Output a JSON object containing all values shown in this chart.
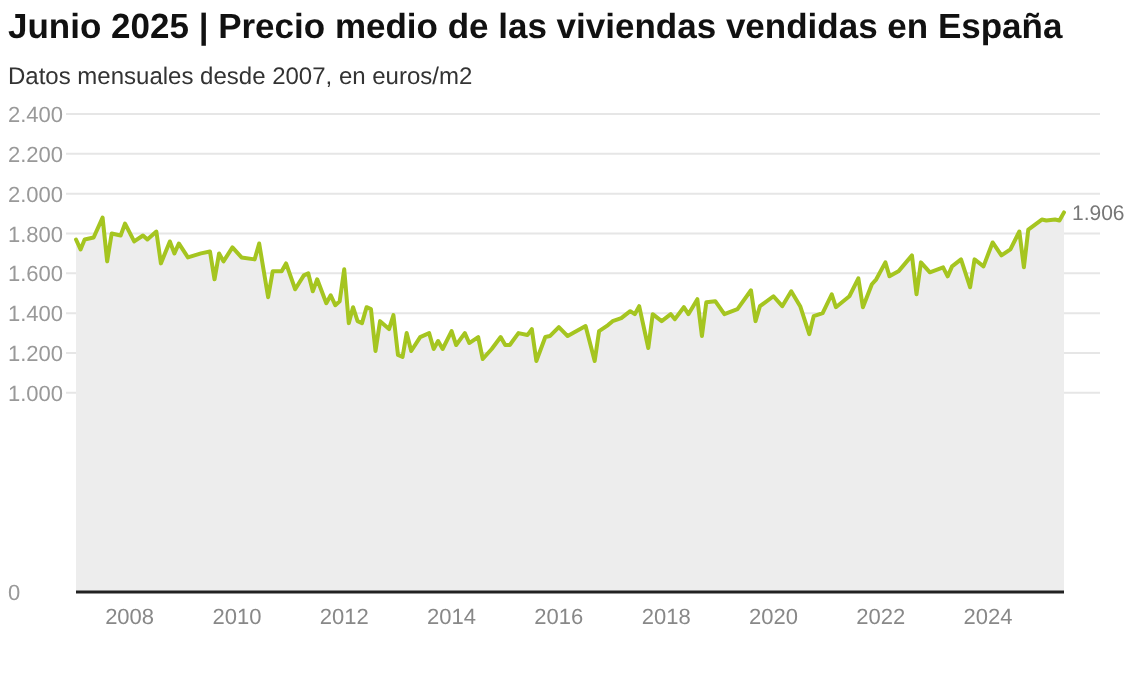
{
  "chart_data": {
    "type": "area",
    "title": "Junio 2025 | Precio medio de las viviendas vendidas en España",
    "subtitle": "Datos mensuales desde 2007, en euros/m2",
    "x": [
      "2007-01",
      "2007-02",
      "2007-03",
      "2007-05",
      "2007-07",
      "2007-08",
      "2007-09",
      "2007-11",
      "2007-12",
      "2008-02",
      "2008-04",
      "2008-05",
      "2008-07",
      "2008-08",
      "2008-10",
      "2008-11",
      "2008-12",
      "2009-02",
      "2009-05",
      "2009-07",
      "2009-08",
      "2009-09",
      "2009-10",
      "2009-12",
      "2010-02",
      "2010-05",
      "2010-06",
      "2010-08",
      "2010-09",
      "2010-11",
      "2010-12",
      "2011-02",
      "2011-04",
      "2011-05",
      "2011-06",
      "2011-07",
      "2011-09",
      "2011-10",
      "2011-11",
      "2011-12",
      "2012-01",
      "2012-02",
      "2012-03",
      "2012-04",
      "2012-05",
      "2012-06",
      "2012-07",
      "2012-08",
      "2012-09",
      "2012-11",
      "2012-12",
      "2013-01",
      "2013-02",
      "2013-03",
      "2013-04",
      "2013-06",
      "2013-08",
      "2013-09",
      "2013-10",
      "2013-11",
      "2014-01",
      "2014-02",
      "2014-04",
      "2014-05",
      "2014-07",
      "2014-08",
      "2014-10",
      "2014-12",
      "2015-01",
      "2015-02",
      "2015-04",
      "2015-06",
      "2015-07",
      "2015-08",
      "2015-10",
      "2015-11",
      "2016-01",
      "2016-03",
      "2016-07",
      "2016-09",
      "2016-10",
      "2016-12",
      "2017-01",
      "2017-03",
      "2017-05",
      "2017-06",
      "2017-07",
      "2017-09",
      "2017-10",
      "2017-12",
      "2018-02",
      "2018-03",
      "2018-05",
      "2018-06",
      "2018-08",
      "2018-09",
      "2018-10",
      "2018-12",
      "2019-02",
      "2019-05",
      "2019-08",
      "2019-09",
      "2019-10",
      "2020-01",
      "2020-03",
      "2020-05",
      "2020-07",
      "2020-09",
      "2020-10",
      "2020-12",
      "2021-02",
      "2021-03",
      "2021-06",
      "2021-08",
      "2021-09",
      "2021-11",
      "2021-12",
      "2022-02",
      "2022-03",
      "2022-05",
      "2022-08",
      "2022-09",
      "2022-10",
      "2022-12",
      "2023-03",
      "2023-04",
      "2023-05",
      "2023-07",
      "2023-09",
      "2023-10",
      "2023-12",
      "2024-02",
      "2024-04",
      "2024-06",
      "2024-08",
      "2024-09",
      "2024-10",
      "2025-01",
      "2025-02",
      "2025-04",
      "2025-05",
      "2025-06"
    ],
    "series": [
      {
        "color": "#a5c520",
        "values": [
          1770,
          1720,
          1770,
          1780,
          1880,
          1660,
          1800,
          1790,
          1850,
          1760,
          1790,
          1770,
          1810,
          1650,
          1760,
          1700,
          1750,
          1680,
          1700,
          1710,
          1570,
          1700,
          1660,
          1730,
          1680,
          1670,
          1750,
          1480,
          1610,
          1610,
          1650,
          1520,
          1590,
          1600,
          1510,
          1570,
          1450,
          1490,
          1440,
          1460,
          1620,
          1350,
          1430,
          1360,
          1350,
          1430,
          1420,
          1210,
          1360,
          1320,
          1390,
          1190,
          1180,
          1300,
          1210,
          1280,
          1300,
          1220,
          1260,
          1220,
          1310,
          1240,
          1300,
          1250,
          1280,
          1170,
          1220,
          1280,
          1240,
          1240,
          1300,
          1290,
          1320,
          1160,
          1280,
          1285,
          1330,
          1285,
          1335,
          1160,
          1310,
          1340,
          1360,
          1375,
          1410,
          1395,
          1435,
          1225,
          1395,
          1360,
          1395,
          1370,
          1430,
          1395,
          1470,
          1285,
          1455,
          1460,
          1395,
          1420,
          1515,
          1360,
          1435,
          1485,
          1435,
          1510,
          1435,
          1295,
          1385,
          1400,
          1495,
          1430,
          1485,
          1575,
          1430,
          1545,
          1570,
          1655,
          1585,
          1610,
          1690,
          1495,
          1655,
          1605,
          1630,
          1585,
          1635,
          1670,
          1530,
          1670,
          1635,
          1755,
          1690,
          1720,
          1810,
          1630,
          1820,
          1870,
          1865,
          1870,
          1865,
          1906
        ]
      }
    ],
    "xlim": [
      "2007-01",
      "2025-06"
    ],
    "xticks": [
      "2008",
      "2010",
      "2012",
      "2014",
      "2016",
      "2018",
      "2020",
      "2022",
      "2024"
    ],
    "ylim": [
      0,
      2400
    ],
    "yticks": [
      0,
      {
        "value": 1000,
        "label": "1.000"
      },
      {
        "value": 1200,
        "label": "1.200"
      },
      {
        "value": 1400,
        "label": "1.400"
      },
      {
        "value": 1600,
        "label": "1.600"
      },
      {
        "value": 1800,
        "label": "1.800"
      },
      {
        "value": 2000,
        "label": "2.000"
      },
      {
        "value": 2200,
        "label": "2.200"
      },
      {
        "value": 2400,
        "label": "2.400"
      }
    ],
    "grid": "y",
    "annotations": [
      {
        "text": "1.906",
        "x": "2025-06",
        "y": 1906
      }
    ]
  }
}
